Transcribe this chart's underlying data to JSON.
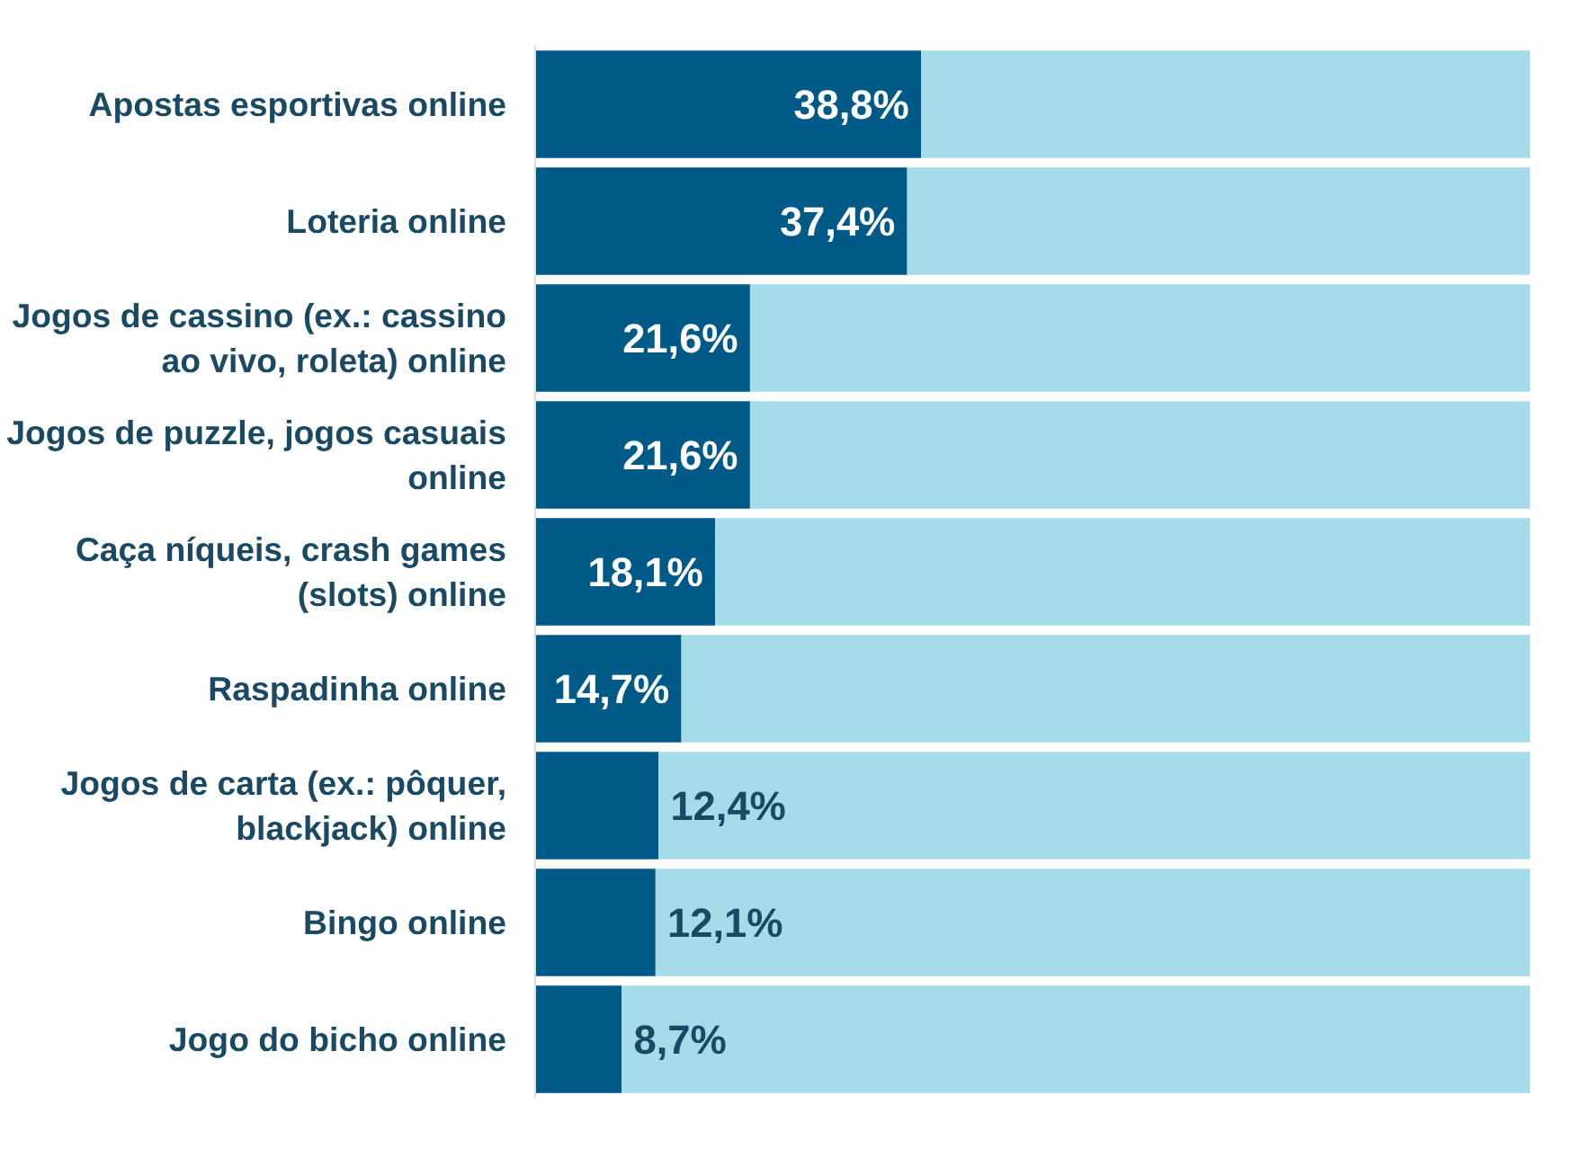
{
  "chart_data": {
    "type": "bar",
    "orientation": "horizontal",
    "stacked": true,
    "categories": [
      "Apostas esportivas online",
      "Loteria online",
      "Jogos de cassino (ex.: cassino ao vivo, roleta) online",
      "Jogos de puzzle, jogos casuais online",
      "Caça níqueis, crash games (slots) online",
      "Raspadinha online",
      "Jogos de carta (ex.: pôquer, blackjack) online",
      "Bingo online",
      "Jogo do bicho online"
    ],
    "series": [
      {
        "color": "#005a87",
        "values": [
          38.8,
          37.4,
          21.6,
          21.6,
          18.1,
          14.7,
          12.4,
          12.1,
          8.7
        ],
        "value_labels": [
          "38,8%",
          "37,4%",
          "21,6%",
          "21,6%",
          "18,1%",
          "14,7%",
          "12,4%",
          "12,1%",
          "8,7%"
        ]
      },
      {
        "color": "#a6dbe9",
        "values": [
          61.2,
          62.6,
          78.4,
          78.4,
          81.9,
          85.3,
          87.6,
          87.9,
          91.3
        ]
      }
    ],
    "xlim": [
      0,
      100
    ],
    "tick_labels": "y"
  }
}
